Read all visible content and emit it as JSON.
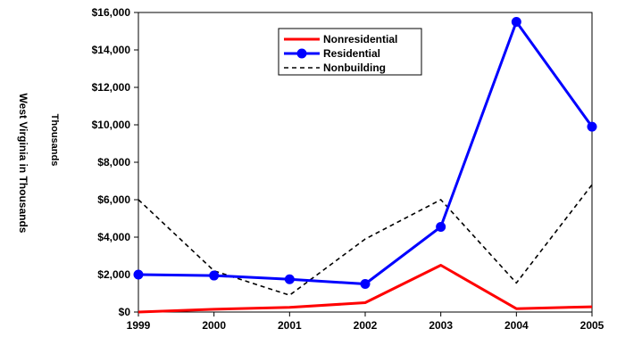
{
  "chart_data": {
    "type": "line",
    "title": "",
    "xlabel": "",
    "ylabel": "West Virginia in Thousands",
    "ylabel_secondary": "Thousands",
    "x": [
      "1999",
      "2000",
      "2001",
      "2002",
      "2003",
      "2004",
      "2005"
    ],
    "yticks": [
      "$0",
      "$2,000",
      "$4,000",
      "$6,000",
      "$8,000",
      "$10,000",
      "$12,000",
      "$14,000",
      "$16,000"
    ],
    "ylim": [
      0,
      16000
    ],
    "grid": false,
    "legend_position": "top-center",
    "series": [
      {
        "name": "Nonresidential",
        "color": "#ff0000",
        "style": "solid",
        "marker": "none",
        "values": [
          0,
          150,
          250,
          500,
          2500,
          180,
          280
        ]
      },
      {
        "name": "Residential",
        "color": "#0000ff",
        "style": "solid",
        "marker": "circle",
        "values": [
          2000,
          1950,
          1750,
          1500,
          4550,
          15500,
          9900
        ]
      },
      {
        "name": "Nonbuilding",
        "color": "#000000",
        "style": "dashed",
        "marker": "none",
        "values": [
          6000,
          2200,
          900,
          3900,
          6000,
          1550,
          6800
        ]
      }
    ]
  }
}
